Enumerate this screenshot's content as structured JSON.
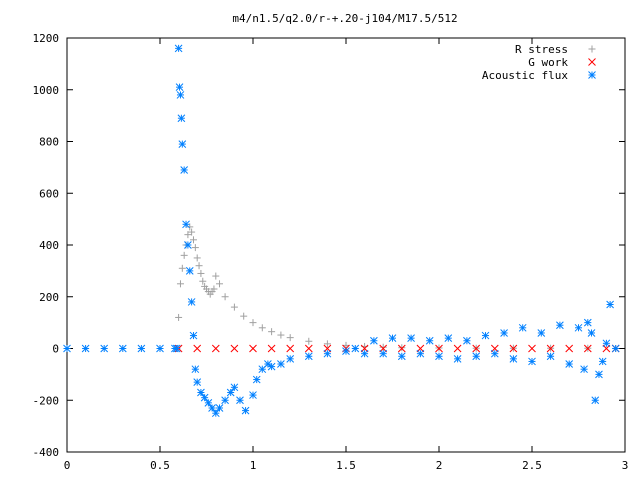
{
  "chart_data": {
    "type": "scatter",
    "title": "m4/n1.5/q2.0/r-+.20-j104/M17.5/512",
    "xlabel": "",
    "ylabel": "",
    "xlim": [
      0,
      3
    ],
    "ylim": [
      -400,
      1200
    ],
    "x_ticks": [
      "0",
      "0.5",
      "1",
      "1.5",
      "2",
      "2.5",
      "3"
    ],
    "y_ticks": [
      "1200",
      "1000",
      "800",
      "600",
      "400",
      "200",
      "0",
      "-200",
      "-400"
    ],
    "grid": false,
    "legend_position": "top-right",
    "series": [
      {
        "name": "R stress",
        "marker": "plus",
        "color": "#a0a0a0",
        "x": [
          0.6,
          0.61,
          0.62,
          0.63,
          0.64,
          0.65,
          0.66,
          0.67,
          0.68,
          0.69,
          0.7,
          0.71,
          0.72,
          0.73,
          0.74,
          0.75,
          0.76,
          0.77,
          0.78,
          0.79,
          0.8,
          0.82,
          0.85,
          0.9,
          0.95,
          1.0,
          1.05,
          1.1,
          1.15,
          1.2,
          1.3,
          1.4,
          1.5,
          1.6,
          1.7,
          1.8,
          2.0,
          2.2,
          2.4,
          2.6,
          2.8,
          2.95
        ],
        "y": [
          120,
          250,
          310,
          360,
          400,
          440,
          470,
          450,
          420,
          390,
          350,
          320,
          290,
          260,
          240,
          230,
          220,
          210,
          220,
          230,
          280,
          250,
          200,
          160,
          125,
          100,
          80,
          65,
          52,
          42,
          28,
          18,
          12,
          8,
          5,
          3,
          2,
          1,
          1,
          1,
          1,
          0
        ]
      },
      {
        "name": "G work",
        "marker": "cross",
        "color": "#ff0000",
        "x": [
          0.6,
          0.7,
          0.8,
          0.9,
          1.0,
          1.1,
          1.2,
          1.3,
          1.4,
          1.5,
          1.6,
          1.7,
          1.8,
          1.9,
          2.0,
          2.1,
          2.2,
          2.3,
          2.4,
          2.5,
          2.6,
          2.7,
          2.8,
          2.9,
          2.95
        ],
        "y": [
          0,
          0,
          0,
          0,
          0,
          0,
          0,
          0,
          0,
          0,
          0,
          0,
          0,
          0,
          0,
          0,
          0,
          0,
          0,
          0,
          0,
          0,
          0,
          0,
          0
        ]
      },
      {
        "name": "Acoustic flux",
        "marker": "star",
        "color": "#0080ff",
        "x": [
          0.0,
          0.1,
          0.2,
          0.3,
          0.4,
          0.5,
          0.58,
          0.59,
          0.6,
          0.605,
          0.61,
          0.615,
          0.62,
          0.63,
          0.64,
          0.65,
          0.66,
          0.67,
          0.68,
          0.69,
          0.7,
          0.72,
          0.74,
          0.76,
          0.78,
          0.8,
          0.82,
          0.85,
          0.88,
          0.9,
          0.93,
          0.96,
          1.0,
          1.02,
          1.05,
          1.08,
          1.1,
          1.15,
          1.2,
          1.3,
          1.4,
          1.5,
          1.55,
          1.6,
          1.65,
          1.7,
          1.75,
          1.8,
          1.85,
          1.9,
          1.95,
          2.0,
          2.05,
          2.1,
          2.15,
          2.2,
          2.25,
          2.3,
          2.35,
          2.4,
          2.45,
          2.5,
          2.55,
          2.6,
          2.65,
          2.7,
          2.75,
          2.78,
          2.8,
          2.82,
          2.84,
          2.86,
          2.88,
          2.9,
          2.92,
          2.95
        ],
        "y": [
          0,
          0,
          0,
          0,
          0,
          0,
          0,
          0,
          1160,
          1010,
          980,
          890,
          790,
          690,
          480,
          400,
          300,
          180,
          50,
          -80,
          -130,
          -170,
          -190,
          -210,
          -230,
          -250,
          -230,
          -200,
          -170,
          -150,
          -200,
          -240,
          -180,
          -120,
          -80,
          -60,
          -70,
          -60,
          -40,
          -30,
          -20,
          -10,
          0,
          -20,
          30,
          -20,
          40,
          -30,
          40,
          -20,
          30,
          -30,
          40,
          -40,
          30,
          -30,
          50,
          -20,
          60,
          -40,
          80,
          -50,
          60,
          -30,
          90,
          -60,
          80,
          -80,
          100,
          60,
          -200,
          -100,
          -50,
          20,
          170,
          0
        ]
      }
    ]
  }
}
